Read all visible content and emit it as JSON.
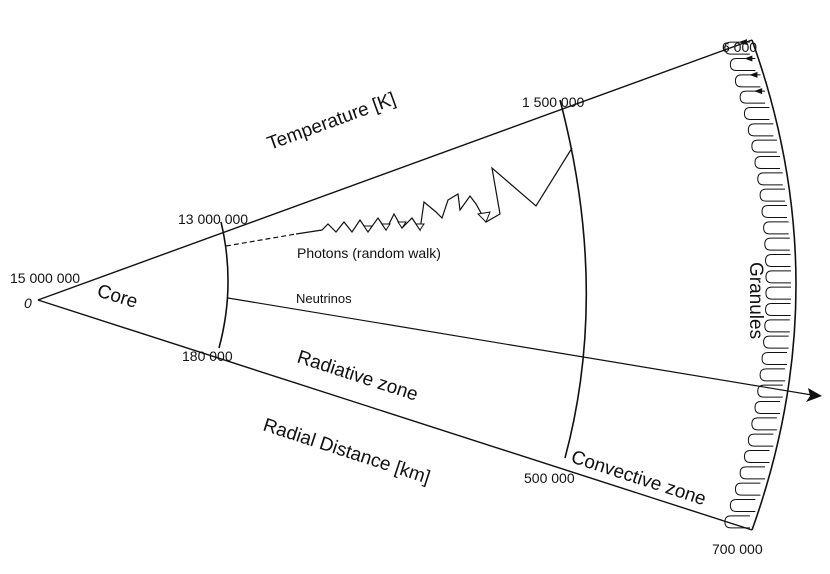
{
  "title": "",
  "temperature_axis": {
    "label": "Temperature [K]",
    "ticks": [
      "15 000 000",
      "13 000 000",
      "1 500 000",
      "6 000"
    ]
  },
  "radius_axis": {
    "label": "Radial Distance [km]",
    "ticks": [
      "0",
      "180 000",
      "500 000",
      "700 000"
    ]
  },
  "zones": {
    "core": "Core",
    "radiative": "Radiative zone",
    "convective": "Convective zone",
    "granules": "Granules"
  },
  "paths": {
    "photons": "Photons (random walk)",
    "neutrinos": "Neutrinos"
  },
  "colors": {
    "ink": "#111111",
    "background": "#ffffff"
  }
}
